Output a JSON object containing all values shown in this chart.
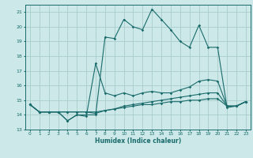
{
  "title": "",
  "xlabel": "Humidex (Indice chaleur)",
  "ylabel": "",
  "bg_color": "#cce8e8",
  "grid_color": "#aacccc",
  "line_color": "#1a6b6b",
  "xlim": [
    -0.5,
    23.5
  ],
  "ylim": [
    13,
    21.5
  ],
  "yticks": [
    13,
    14,
    15,
    16,
    17,
    18,
    19,
    20,
    21
  ],
  "xticks": [
    0,
    1,
    2,
    3,
    4,
    5,
    6,
    7,
    8,
    9,
    10,
    11,
    12,
    13,
    14,
    15,
    16,
    17,
    18,
    19,
    20,
    21,
    22,
    23
  ],
  "series": [
    {
      "x": [
        0,
        1,
        2,
        3,
        4,
        5,
        6,
        7,
        8,
        9,
        10,
        11,
        12,
        13,
        14,
        15,
        16,
        17,
        18,
        19,
        20,
        21,
        22,
        23
      ],
      "y": [
        14.7,
        14.2,
        14.2,
        14.2,
        13.6,
        14.0,
        14.0,
        14.0,
        19.3,
        19.2,
        20.5,
        20.0,
        19.8,
        21.2,
        20.5,
        19.8,
        19.0,
        18.6,
        20.1,
        18.6,
        18.6,
        14.5,
        14.6,
        14.9
      ]
    },
    {
      "x": [
        0,
        1,
        2,
        3,
        4,
        5,
        6,
        7,
        8,
        9,
        10,
        11,
        12,
        13,
        14,
        15,
        16,
        17,
        18,
        19,
        20,
        21,
        22,
        23
      ],
      "y": [
        14.7,
        14.2,
        14.2,
        14.2,
        13.6,
        14.0,
        13.9,
        17.5,
        15.5,
        15.3,
        15.5,
        15.3,
        15.5,
        15.6,
        15.5,
        15.5,
        15.7,
        15.9,
        16.3,
        16.4,
        16.3,
        14.6,
        14.6,
        14.9
      ]
    },
    {
      "x": [
        0,
        1,
        2,
        3,
        4,
        5,
        6,
        7,
        8,
        9,
        10,
        11,
        12,
        13,
        14,
        15,
        16,
        17,
        18,
        19,
        20,
        21,
        22,
        23
      ],
      "y": [
        14.7,
        14.2,
        14.2,
        14.2,
        14.2,
        14.2,
        14.2,
        14.2,
        14.3,
        14.4,
        14.5,
        14.6,
        14.7,
        14.7,
        14.8,
        14.9,
        14.9,
        15.0,
        15.0,
        15.1,
        15.1,
        14.6,
        14.6,
        14.9
      ]
    },
    {
      "x": [
        0,
        1,
        2,
        3,
        4,
        5,
        6,
        7,
        8,
        9,
        10,
        11,
        12,
        13,
        14,
        15,
        16,
        17,
        18,
        19,
        20,
        21,
        22,
        23
      ],
      "y": [
        14.7,
        14.2,
        14.2,
        14.2,
        14.2,
        14.2,
        14.2,
        14.1,
        14.3,
        14.4,
        14.6,
        14.7,
        14.8,
        14.9,
        15.0,
        15.1,
        15.2,
        15.3,
        15.4,
        15.5,
        15.5,
        14.6,
        14.6,
        14.9
      ]
    }
  ]
}
